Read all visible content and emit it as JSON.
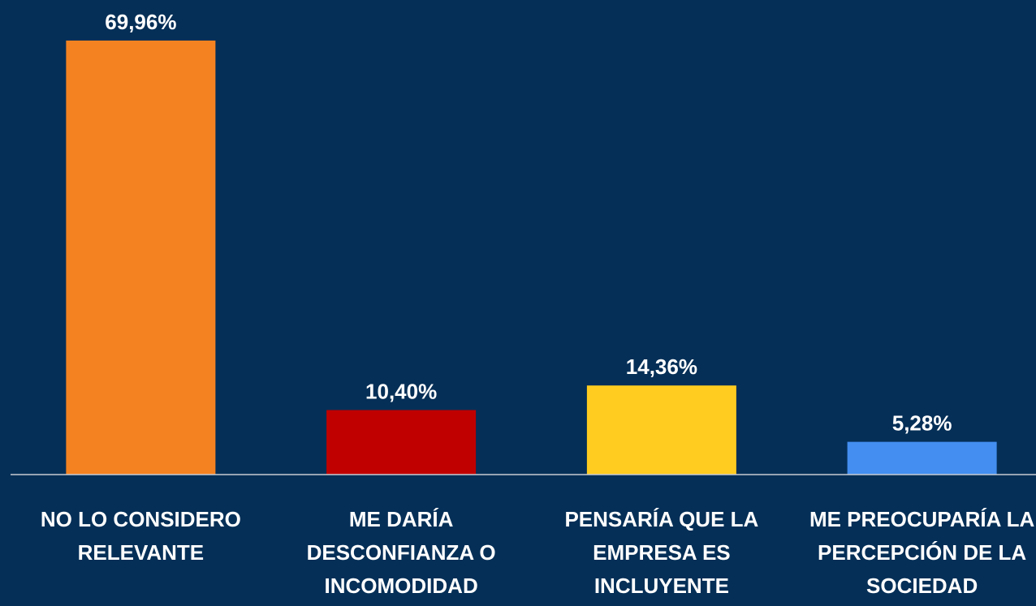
{
  "chart_data": {
    "type": "bar",
    "categories": [
      "NO LO CONSIDERO RELEVANTE",
      "ME DARÍA DESCONFIANZA O INCOMODIDAD",
      "PENSARÍA QUE LA EMPRESA ES INCLUYENTE",
      "ME PREOCUPARÍA LA PERCEPCIÓN DE LA SOCIEDAD"
    ],
    "values": [
      69.96,
      10.4,
      14.36,
      5.28
    ],
    "value_labels": [
      "69,96%",
      "10,40%",
      "14,36%",
      "5,28%"
    ],
    "colors": [
      "#f58220",
      "#c00000",
      "#ffcc1f",
      "#438ef0"
    ]
  }
}
